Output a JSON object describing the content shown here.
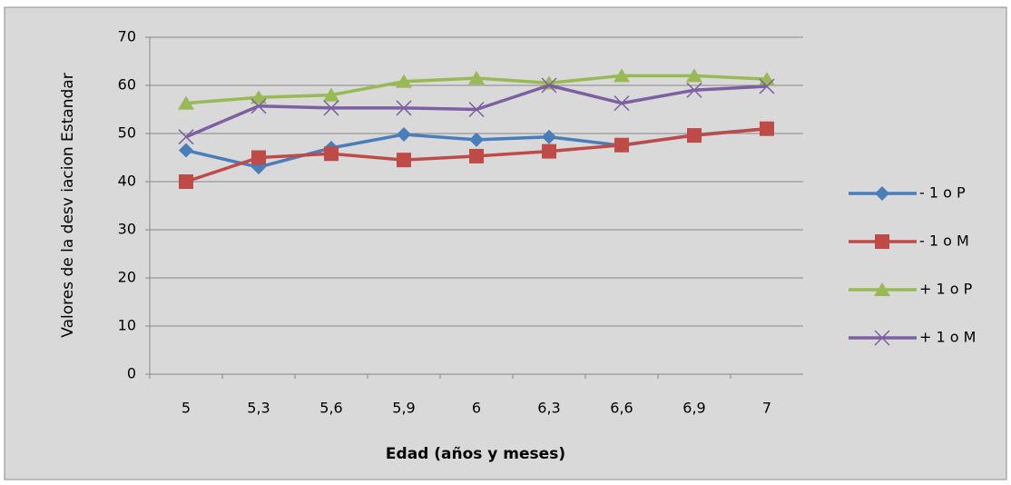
{
  "chart_data": {
    "type": "line",
    "y_axis_label": "Valores  de la desv iacion Estandar",
    "x_axis_label": "Edad (años y meses)",
    "categories": [
      "5",
      "5,3",
      "5,6",
      "5,9",
      "6",
      "6,3",
      "6,6",
      "6,9",
      "7"
    ],
    "series": [
      {
        "name": "- 1 o P",
        "color": "#4a7ebb",
        "marker": "diamond",
        "values": [
          46.5,
          43,
          47,
          49.8,
          48.7,
          49.3,
          47.5,
          49.7,
          51
        ]
      },
      {
        "name": "- 1 o M",
        "color": "#be4b48",
        "marker": "square",
        "values": [
          40,
          45,
          45.8,
          44.5,
          45.3,
          46.3,
          47.6,
          49.6,
          51
        ]
      },
      {
        "name": "+ 1 o P",
        "color": "#98b954",
        "marker": "triangle",
        "values": [
          56.3,
          57.5,
          58,
          60.8,
          61.5,
          60.5,
          62,
          62,
          61.3
        ]
      },
      {
        "name": "+ 1 o M",
        "color": "#7d60a0",
        "marker": "x",
        "values": [
          49.3,
          55.7,
          55.3,
          55.3,
          55,
          60,
          56.3,
          59,
          59.8
        ]
      }
    ],
    "ylim": [
      0,
      70
    ],
    "yticks": [
      0,
      10,
      20,
      30,
      40,
      50,
      60,
      70
    ],
    "grid": true,
    "legend": "right"
  }
}
